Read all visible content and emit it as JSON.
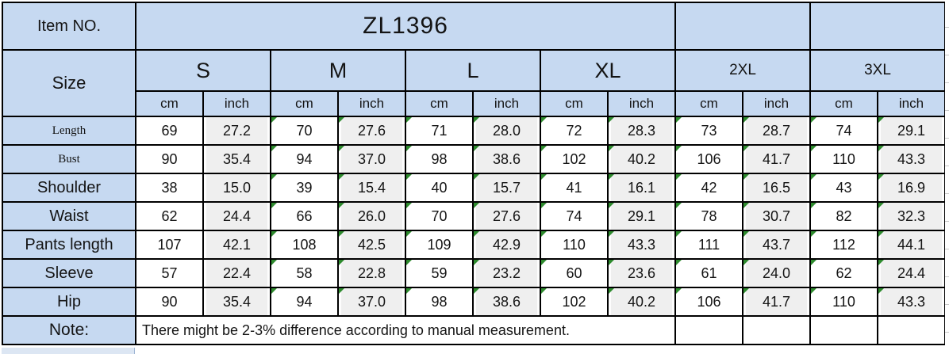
{
  "header": {
    "item_no_label": "Item NO.",
    "item_no_value": "ZL1396",
    "size_label": "Size",
    "sizes": [
      "S",
      "M",
      "L",
      "XL",
      "2XL",
      "3XL"
    ],
    "unit_cm": "cm",
    "unit_inch": "inch"
  },
  "measurements": {
    "rows": [
      {
        "label": "Length",
        "values": [
          [
            "69",
            "27.2"
          ],
          [
            "70",
            "27.6"
          ],
          [
            "71",
            "28.0"
          ],
          [
            "72",
            "28.3"
          ],
          [
            "73",
            "28.7"
          ],
          [
            "74",
            "29.1"
          ]
        ]
      },
      {
        "label": "Bust",
        "values": [
          [
            "90",
            "35.4"
          ],
          [
            "94",
            "37.0"
          ],
          [
            "98",
            "38.6"
          ],
          [
            "102",
            "40.2"
          ],
          [
            "106",
            "41.7"
          ],
          [
            "110",
            "43.3"
          ]
        ]
      },
      {
        "label": "Shoulder",
        "values": [
          [
            "38",
            "15.0"
          ],
          [
            "39",
            "15.4"
          ],
          [
            "40",
            "15.7"
          ],
          [
            "41",
            "16.1"
          ],
          [
            "42",
            "16.5"
          ],
          [
            "43",
            "16.9"
          ]
        ]
      },
      {
        "label": "Waist",
        "values": [
          [
            "62",
            "24.4"
          ],
          [
            "66",
            "26.0"
          ],
          [
            "70",
            "27.6"
          ],
          [
            "74",
            "29.1"
          ],
          [
            "78",
            "30.7"
          ],
          [
            "82",
            "32.3"
          ]
        ]
      },
      {
        "label": "Pants length",
        "values": [
          [
            "107",
            "42.1"
          ],
          [
            "108",
            "42.5"
          ],
          [
            "109",
            "42.9"
          ],
          [
            "110",
            "43.3"
          ],
          [
            "111",
            "43.7"
          ],
          [
            "112",
            "44.1"
          ]
        ]
      },
      {
        "label": "Sleeve",
        "values": [
          [
            "57",
            "22.4"
          ],
          [
            "58",
            "22.8"
          ],
          [
            "59",
            "23.2"
          ],
          [
            "60",
            "23.6"
          ],
          [
            "61",
            "24.0"
          ],
          [
            "62",
            "24.4"
          ]
        ]
      },
      {
        "label": "Hip",
        "values": [
          [
            "90",
            "35.4"
          ],
          [
            "94",
            "37.0"
          ],
          [
            "98",
            "38.6"
          ],
          [
            "102",
            "40.2"
          ],
          [
            "106",
            "41.7"
          ],
          [
            "110",
            "43.3"
          ]
        ]
      }
    ]
  },
  "note": {
    "label": "Note:",
    "text": "There might be 2-3% difference according to manual measurement."
  },
  "colors": {
    "header_blue": "#c6d9f1",
    "cell_gray": "#efefef",
    "triangle_green": "#2e8b2e",
    "border_color": "#000000",
    "text_color": "#141414"
  }
}
